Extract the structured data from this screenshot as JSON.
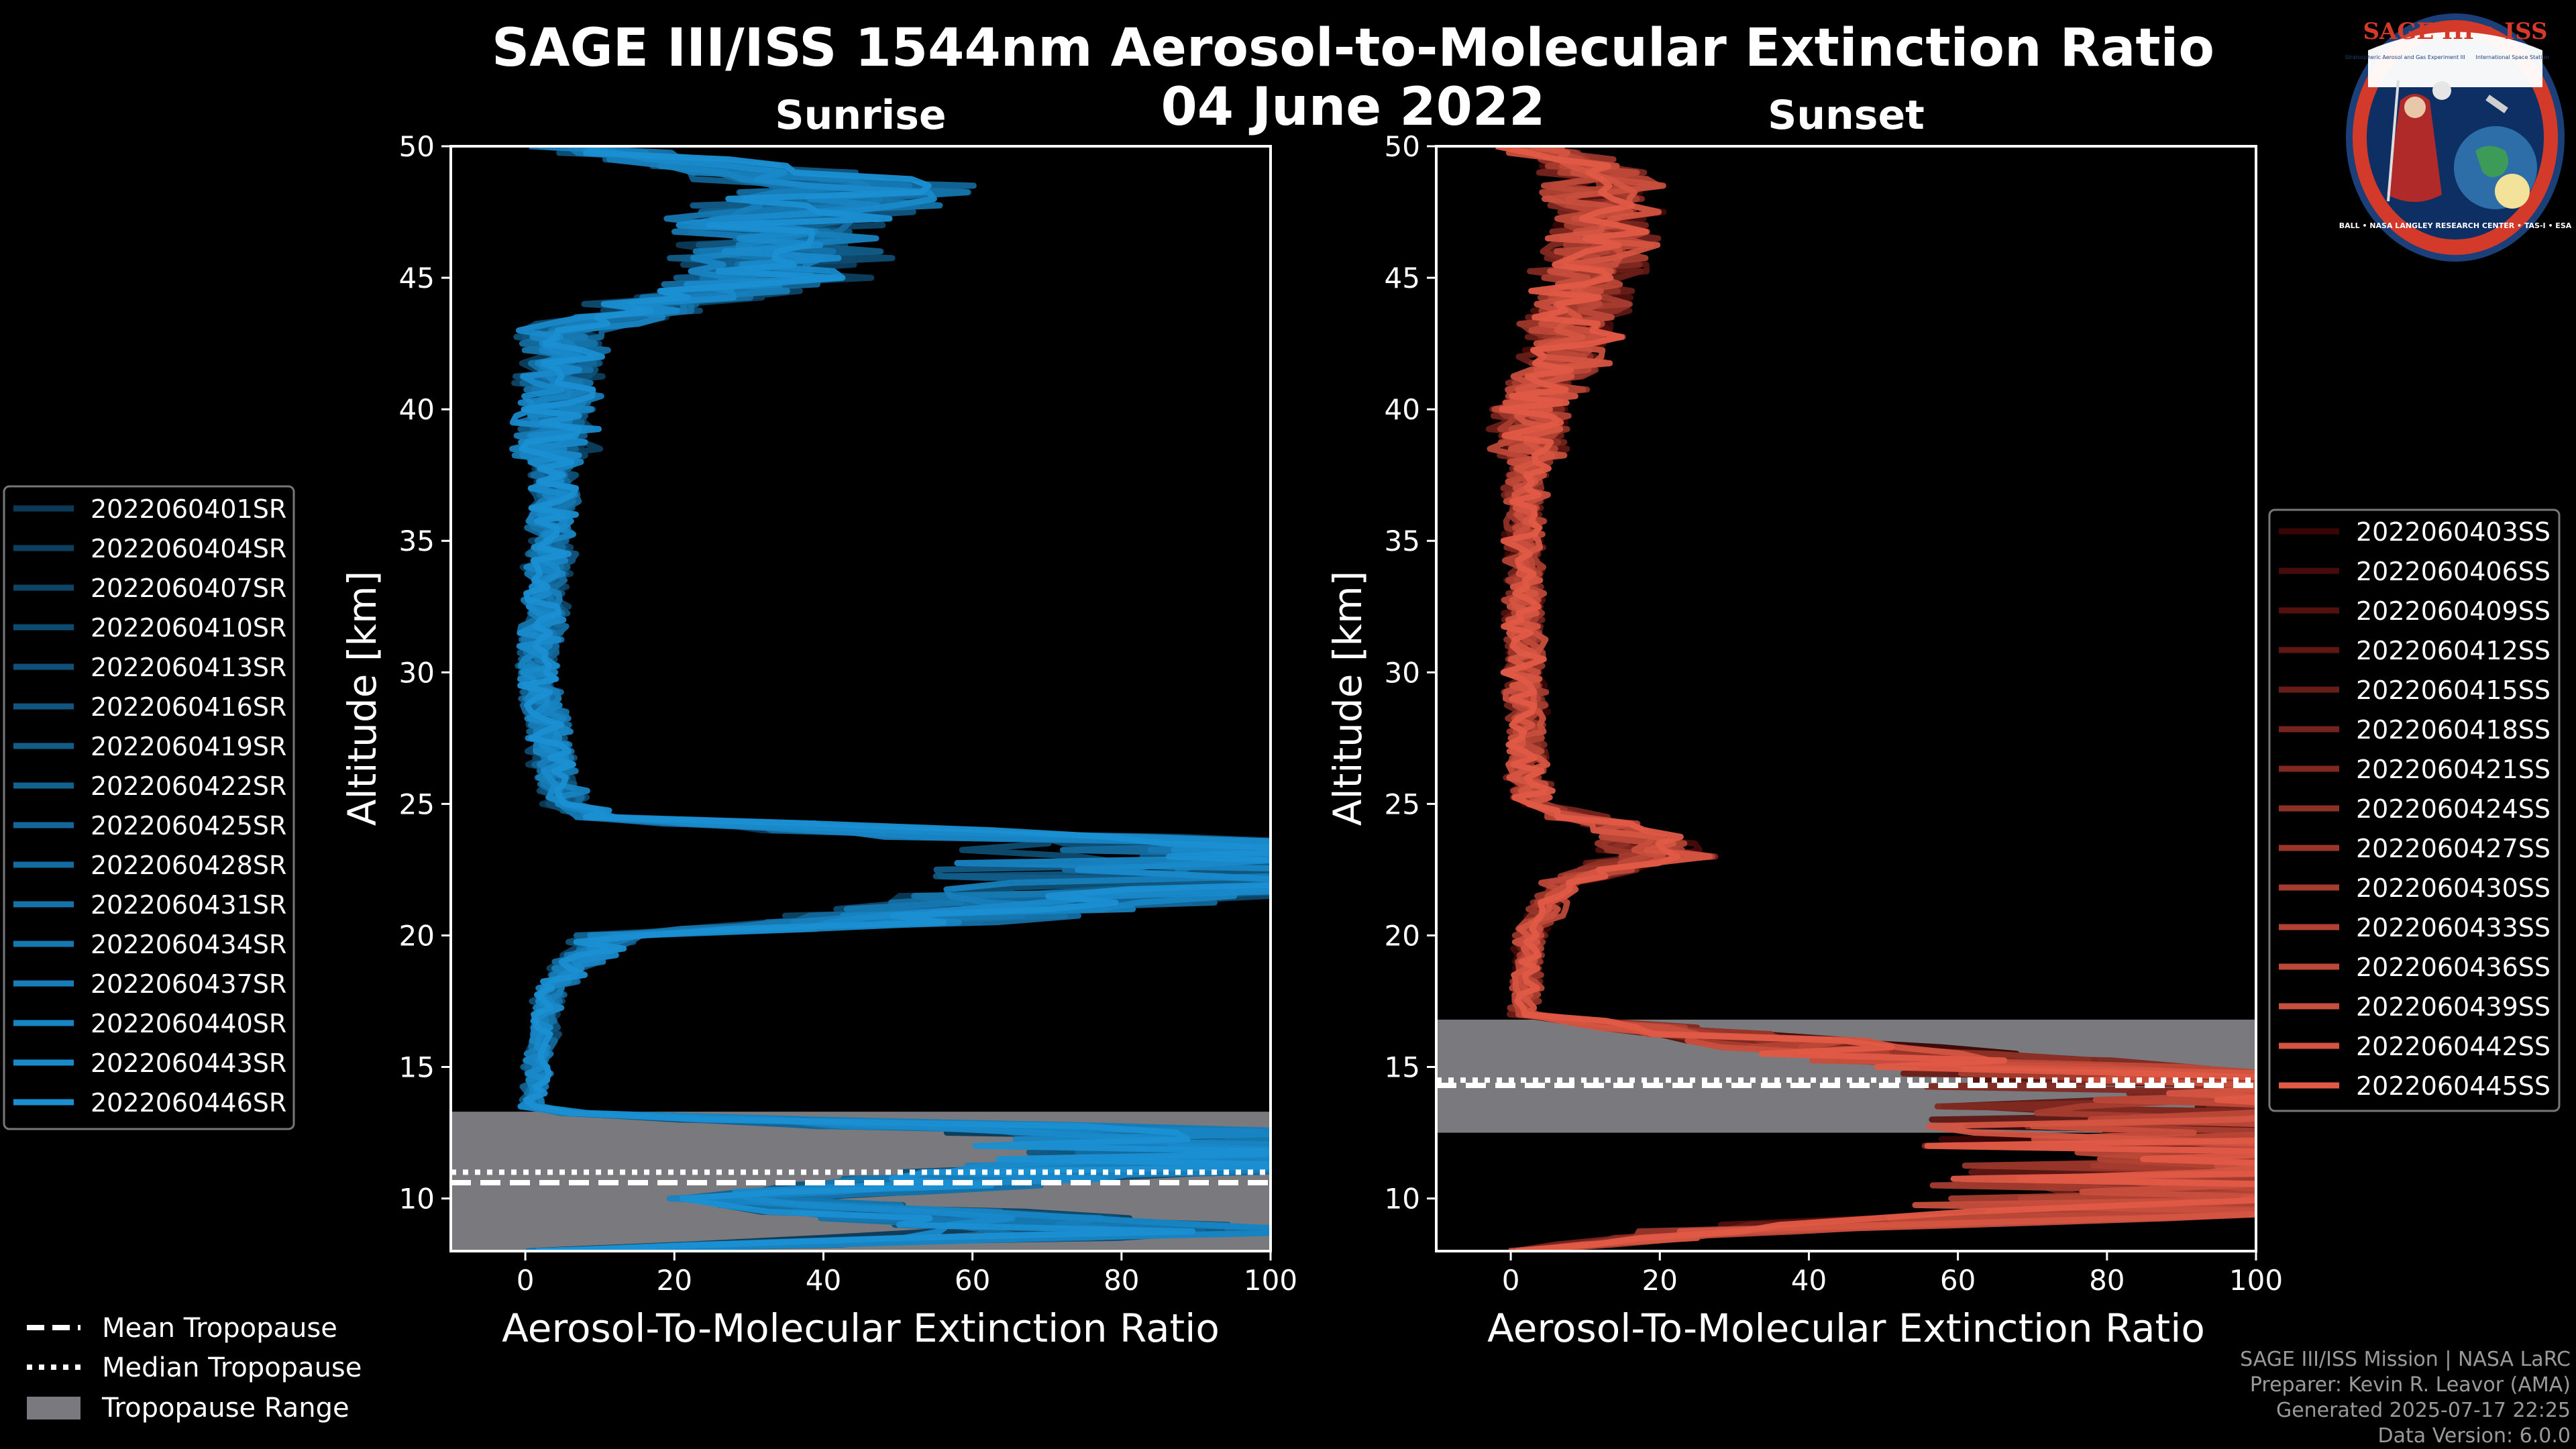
{
  "title": {
    "line1": "SAGE III/ISS 1544nm Aerosol-to-Molecular Extinction Ratio",
    "line2": "04 June 2022"
  },
  "chart_data": [
    {
      "type": "line",
      "title": "Sunrise",
      "xlabel": "Aerosol-To-Molecular Extinction Ratio",
      "ylabel": "Altitude [km]",
      "xlim": [
        -10,
        100
      ],
      "ylim": [
        8,
        50
      ],
      "xticks": [
        0,
        20,
        40,
        60,
        80,
        100
      ],
      "yticks": [
        10,
        15,
        20,
        25,
        30,
        35,
        40,
        45,
        50
      ],
      "tropopause": {
        "mean": 10.6,
        "median": 11.0,
        "range": [
          8.0,
          13.3
        ]
      },
      "color_dark": "#0b3a57",
      "color_light": "#1a8fd2",
      "series_names": [
        "2022060401SR",
        "2022060404SR",
        "2022060407SR",
        "2022060410SR",
        "2022060413SR",
        "2022060416SR",
        "2022060419SR",
        "2022060422SR",
        "2022060425SR",
        "2022060428SR",
        "2022060431SR",
        "2022060434SR",
        "2022060437SR",
        "2022060440SR",
        "2022060443SR",
        "2022060446SR"
      ],
      "profile_points": [
        [
          50,
          5
        ],
        [
          48.5,
          56
        ],
        [
          47,
          40
        ],
        [
          45,
          39
        ],
        [
          43,
          6
        ],
        [
          40,
          5
        ],
        [
          35,
          4
        ],
        [
          30,
          2
        ],
        [
          27,
          4
        ],
        [
          25,
          6
        ],
        [
          24.5,
          12
        ],
        [
          23.5,
          100
        ],
        [
          22.5,
          100
        ],
        [
          21.8,
          100
        ],
        [
          20.5,
          55
        ],
        [
          20,
          14
        ],
        [
          18,
          4
        ],
        [
          15,
          2
        ],
        [
          13.3,
          1
        ],
        [
          12.5,
          100
        ],
        [
          11.2,
          100
        ],
        [
          10,
          33
        ],
        [
          8.7,
          100
        ],
        [
          8,
          2
        ]
      ]
    },
    {
      "type": "line",
      "title": "Sunset",
      "xlabel": "Aerosol-To-Molecular Extinction Ratio",
      "ylabel": "Altitude [km]",
      "xlim": [
        -10,
        100
      ],
      "ylim": [
        8,
        50
      ],
      "xticks": [
        0,
        20,
        40,
        60,
        80,
        100
      ],
      "yticks": [
        10,
        15,
        20,
        25,
        30,
        35,
        40,
        45,
        50
      ],
      "tropopause": {
        "mean": 14.3,
        "median": 14.5,
        "range": [
          12.5,
          16.8
        ]
      },
      "color_dark": "#3a0505",
      "color_light": "#e05a46",
      "series_names": [
        "2022060403SS",
        "2022060406SS",
        "2022060409SS",
        "2022060412SS",
        "2022060415SS",
        "2022060418SS",
        "2022060421SS",
        "2022060424SS",
        "2022060427SS",
        "2022060430SS",
        "2022060433SS",
        "2022060436SS",
        "2022060439SS",
        "2022060442SS",
        "2022060445SS"
      ],
      "profile_points": [
        [
          50,
          4
        ],
        [
          48.5,
          16
        ],
        [
          45,
          12
        ],
        [
          42,
          8
        ],
        [
          40,
          3
        ],
        [
          35,
          2
        ],
        [
          30,
          2
        ],
        [
          25,
          3
        ],
        [
          24,
          18
        ],
        [
          23,
          24
        ],
        [
          22,
          8
        ],
        [
          20,
          3
        ],
        [
          17,
          2
        ],
        [
          14.5,
          100
        ],
        [
          13.5,
          100
        ],
        [
          12.5,
          100
        ],
        [
          11,
          100
        ],
        [
          10.5,
          100
        ],
        [
          9.5,
          100
        ],
        [
          8.8,
          35
        ],
        [
          8,
          1
        ]
      ]
    }
  ],
  "legend_bottom": {
    "mean": "Mean Tropopause",
    "median": "Median Tropopause",
    "range": "Tropopause Range"
  },
  "footer": {
    "line1": "SAGE III/ISS Mission | NASA LaRC",
    "line2": "Preparer: Kevin R. Leavor (AMA)",
    "line3": "Generated 2025-07-17 22:25",
    "line4": "Data Version: 6.0.0"
  },
  "logo": {
    "top_text": "SAGE III • ISS",
    "sub_left": "Stratospheric Aerosol and Gas Experiment III",
    "sub_right": "International Space Station",
    "bottom_text": "BALL • NASA LANGLEY RESEARCH CENTER • TAS-I • ESA"
  }
}
